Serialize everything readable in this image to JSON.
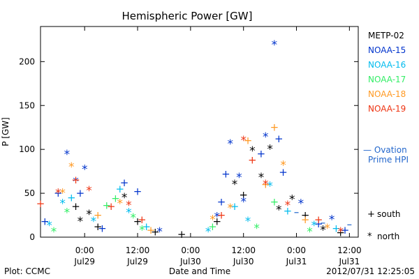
{
  "chart_data": {
    "type": "scatter",
    "title": "Hemispheric Power [GW]",
    "ylabel": "P [GW]",
    "xlabel": "Date and Time",
    "ylim": [
      0,
      240
    ],
    "xlim": [
      "2012-07-28T14:00",
      "2012-07-31T14:00"
    ],
    "yticks": [
      0,
      50,
      100,
      150,
      200
    ],
    "xticks": [
      {
        "x": "2012-07-29T00:00",
        "time": "0:00",
        "date": "Jul29"
      },
      {
        "x": "2012-07-29T12:00",
        "time": "12:00",
        "date": "Jul29"
      },
      {
        "x": "2012-07-30T00:00",
        "time": "0:00",
        "date": "Jul30"
      },
      {
        "x": "2012-07-30T12:00",
        "time": "12:00",
        "date": "Jul30"
      },
      {
        "x": "2012-07-31T00:00",
        "time": "0:00",
        "date": "Jul31"
      },
      {
        "x": "2012-07-31T12:00",
        "time": "12:00",
        "date": "Jul31"
      }
    ],
    "series": [
      {
        "name": "METP-02",
        "color": "#000000",
        "points": [
          {
            "x": "2012-07-28T22:00",
            "y": 35,
            "m": "+"
          },
          {
            "x": "2012-07-28T23:00",
            "y": 20,
            "m": "*"
          },
          {
            "x": "2012-07-29T01:00",
            "y": 28,
            "m": "*"
          },
          {
            "x": "2012-07-29T03:00",
            "y": 12,
            "m": "+"
          },
          {
            "x": "2012-07-29T09:00",
            "y": 47,
            "m": "*"
          },
          {
            "x": "2012-07-29T12:00",
            "y": 18,
            "m": "+"
          },
          {
            "x": "2012-07-29T16:00",
            "y": 6,
            "m": "+"
          },
          {
            "x": "2012-07-29T22:00",
            "y": 3,
            "m": "+"
          },
          {
            "x": "2012-07-30T06:00",
            "y": 18,
            "m": "+"
          },
          {
            "x": "2012-07-30T10:00",
            "y": 62,
            "m": "*"
          },
          {
            "x": "2012-07-30T12:00",
            "y": 48,
            "m": "+"
          },
          {
            "x": "2012-07-30T14:00",
            "y": 100,
            "m": "*"
          },
          {
            "x": "2012-07-30T16:00",
            "y": 70,
            "m": "*"
          },
          {
            "x": "2012-07-30T18:00",
            "y": 102,
            "m": "*"
          },
          {
            "x": "2012-07-30T20:00",
            "y": 33,
            "m": "*"
          },
          {
            "x": "2012-07-30T23:00",
            "y": 45,
            "m": "*"
          },
          {
            "x": "2012-07-31T02:00",
            "y": 25,
            "m": "+"
          },
          {
            "x": "2012-07-31T06:00",
            "y": 10,
            "m": "*"
          },
          {
            "x": "2012-07-31T10:00",
            "y": 5,
            "m": "+"
          }
        ]
      },
      {
        "name": "NOAA-15",
        "color": "#0033cc",
        "points": [
          {
            "x": "2012-07-28T15:00",
            "y": 18,
            "m": "+"
          },
          {
            "x": "2012-07-28T18:00",
            "y": 50,
            "m": "+"
          },
          {
            "x": "2012-07-28T20:00",
            "y": 96,
            "m": "*"
          },
          {
            "x": "2012-07-28T22:00",
            "y": 65,
            "m": "*"
          },
          {
            "x": "2012-07-28T23:00",
            "y": 50,
            "m": "+"
          },
          {
            "x": "2012-07-29T00:00",
            "y": 79,
            "m": "*"
          },
          {
            "x": "2012-07-29T04:00",
            "y": 10,
            "m": "+"
          },
          {
            "x": "2012-07-29T09:00",
            "y": 62,
            "m": "+"
          },
          {
            "x": "2012-07-29T12:00",
            "y": 52,
            "m": "+"
          },
          {
            "x": "2012-07-29T17:00",
            "y": 8,
            "m": "*"
          },
          {
            "x": "2012-07-30T06:00",
            "y": 25,
            "m": "*"
          },
          {
            "x": "2012-07-30T07:00",
            "y": 40,
            "m": "+"
          },
          {
            "x": "2012-07-30T08:00",
            "y": 72,
            "m": "+"
          },
          {
            "x": "2012-07-30T09:00",
            "y": 108,
            "m": "*"
          },
          {
            "x": "2012-07-30T11:00",
            "y": 70,
            "m": "*"
          },
          {
            "x": "2012-07-30T12:00",
            "y": 42,
            "m": "*"
          },
          {
            "x": "2012-07-30T16:00",
            "y": 95,
            "m": "+"
          },
          {
            "x": "2012-07-30T17:00",
            "y": 116,
            "m": "*"
          },
          {
            "x": "2012-07-30T19:00",
            "y": 221,
            "m": "*"
          },
          {
            "x": "2012-07-30T20:00",
            "y": 112,
            "m": "+"
          },
          {
            "x": "2012-07-30T21:00",
            "y": 74,
            "m": "+"
          },
          {
            "x": "2012-07-31T01:00",
            "y": 40,
            "m": "*"
          },
          {
            "x": "2012-07-31T05:00",
            "y": 15,
            "m": "+"
          },
          {
            "x": "2012-07-31T08:00",
            "y": 22,
            "m": "*"
          },
          {
            "x": "2012-07-31T11:00",
            "y": 8,
            "m": "+"
          }
        ]
      },
      {
        "name": "NOAA-16",
        "color": "#00bbee",
        "points": [
          {
            "x": "2012-07-28T16:00",
            "y": 15,
            "m": "*"
          },
          {
            "x": "2012-07-28T19:00",
            "y": 40,
            "m": "*"
          },
          {
            "x": "2012-07-28T21:00",
            "y": 45,
            "m": "+"
          },
          {
            "x": "2012-07-29T02:00",
            "y": 20,
            "m": "*"
          },
          {
            "x": "2012-07-29T08:00",
            "y": 55,
            "m": "+"
          },
          {
            "x": "2012-07-29T10:00",
            "y": 30,
            "m": "*"
          },
          {
            "x": "2012-07-29T14:00",
            "y": 12,
            "m": "+"
          },
          {
            "x": "2012-07-30T04:00",
            "y": 8,
            "m": "*"
          },
          {
            "x": "2012-07-30T10:00",
            "y": 35,
            "m": "+"
          },
          {
            "x": "2012-07-30T13:00",
            "y": 20,
            "m": "*"
          },
          {
            "x": "2012-07-30T18:00",
            "y": 60,
            "m": "*"
          },
          {
            "x": "2012-07-30T22:00",
            "y": 30,
            "m": "+"
          },
          {
            "x": "2012-07-31T04:00",
            "y": 15,
            "m": "*"
          },
          {
            "x": "2012-07-31T09:00",
            "y": 10,
            "m": "+"
          }
        ]
      },
      {
        "name": "NOAA-17",
        "color": "#33ee66",
        "points": [
          {
            "x": "2012-07-28T17:00",
            "y": 8,
            "m": "*"
          },
          {
            "x": "2012-07-28T20:00",
            "y": 30,
            "m": "*"
          },
          {
            "x": "2012-07-29T05:00",
            "y": 36,
            "m": "+"
          },
          {
            "x": "2012-07-29T07:00",
            "y": 44,
            "m": "+"
          },
          {
            "x": "2012-07-29T11:00",
            "y": 24,
            "m": "*"
          },
          {
            "x": "2012-07-29T13:00",
            "y": 10,
            "m": "*"
          },
          {
            "x": "2012-07-30T05:00",
            "y": 12,
            "m": "+"
          },
          {
            "x": "2012-07-30T15:00",
            "y": 12,
            "m": "*"
          },
          {
            "x": "2012-07-30T19:00",
            "y": 40,
            "m": "+"
          },
          {
            "x": "2012-07-31T03:00",
            "y": 8,
            "m": "*"
          }
        ]
      },
      {
        "name": "NOAA-18",
        "color": "#ff9922",
        "points": [
          {
            "x": "2012-07-28T19:00",
            "y": 52,
            "m": "*"
          },
          {
            "x": "2012-07-28T21:00",
            "y": 82,
            "m": "*"
          },
          {
            "x": "2012-07-29T03:00",
            "y": 25,
            "m": "+"
          },
          {
            "x": "2012-07-29T08:00",
            "y": 40,
            "m": "*"
          },
          {
            "x": "2012-07-29T15:00",
            "y": 8,
            "m": "+"
          },
          {
            "x": "2012-07-30T05:00",
            "y": 22,
            "m": "*"
          },
          {
            "x": "2012-07-30T09:00",
            "y": 35,
            "m": "*"
          },
          {
            "x": "2012-07-30T13:00",
            "y": 110,
            "m": "+"
          },
          {
            "x": "2012-07-30T17:00",
            "y": 60,
            "m": "+"
          },
          {
            "x": "2012-07-30T19:00",
            "y": 125,
            "m": "+"
          },
          {
            "x": "2012-07-30T21:00",
            "y": 84,
            "m": "*"
          },
          {
            "x": "2012-07-31T02:00",
            "y": 20,
            "m": "+"
          },
          {
            "x": "2012-07-31T07:00",
            "y": 12,
            "m": "*"
          }
        ]
      },
      {
        "name": "NOAA-19",
        "color": "#ee3311",
        "points": [
          {
            "x": "2012-07-28T14:00",
            "y": 38,
            "m": "+"
          },
          {
            "x": "2012-07-28T18:00",
            "y": 52,
            "m": "*"
          },
          {
            "x": "2012-07-28T22:00",
            "y": 65,
            "m": "+"
          },
          {
            "x": "2012-07-29T01:00",
            "y": 55,
            "m": "*"
          },
          {
            "x": "2012-07-29T06:00",
            "y": 35,
            "m": "+"
          },
          {
            "x": "2012-07-29T10:00",
            "y": 38,
            "m": "*"
          },
          {
            "x": "2012-07-29T13:00",
            "y": 20,
            "m": "+"
          },
          {
            "x": "2012-07-30T07:00",
            "y": 25,
            "m": "+"
          },
          {
            "x": "2012-07-30T12:00",
            "y": 112,
            "m": "*"
          },
          {
            "x": "2012-07-30T14:00",
            "y": 88,
            "m": "+"
          },
          {
            "x": "2012-07-30T17:00",
            "y": 62,
            "m": "*"
          },
          {
            "x": "2012-07-30T22:00",
            "y": 38,
            "m": "*"
          },
          {
            "x": "2012-07-31T05:00",
            "y": 20,
            "m": "+"
          },
          {
            "x": "2012-07-31T10:00",
            "y": 8,
            "m": "*"
          }
        ]
      }
    ],
    "ovation": {
      "label_line1": "— Ovation",
      "label_line2": "Prime HPI",
      "color": "#2266cc",
      "points": [
        {
          "x": "2012-07-31T00:00",
          "y": 28
        },
        {
          "x": "2012-07-31T06:00",
          "y": 16
        },
        {
          "x": "2012-07-31T12:00",
          "y": 14
        }
      ]
    },
    "marker_legend": [
      {
        "symbol": "+",
        "label": "south"
      },
      {
        "symbol": "*",
        "label": "north"
      }
    ]
  },
  "footer": {
    "plot_label": "Plot: CCMC",
    "timestamp": "2012/07/31 12:25:05"
  }
}
